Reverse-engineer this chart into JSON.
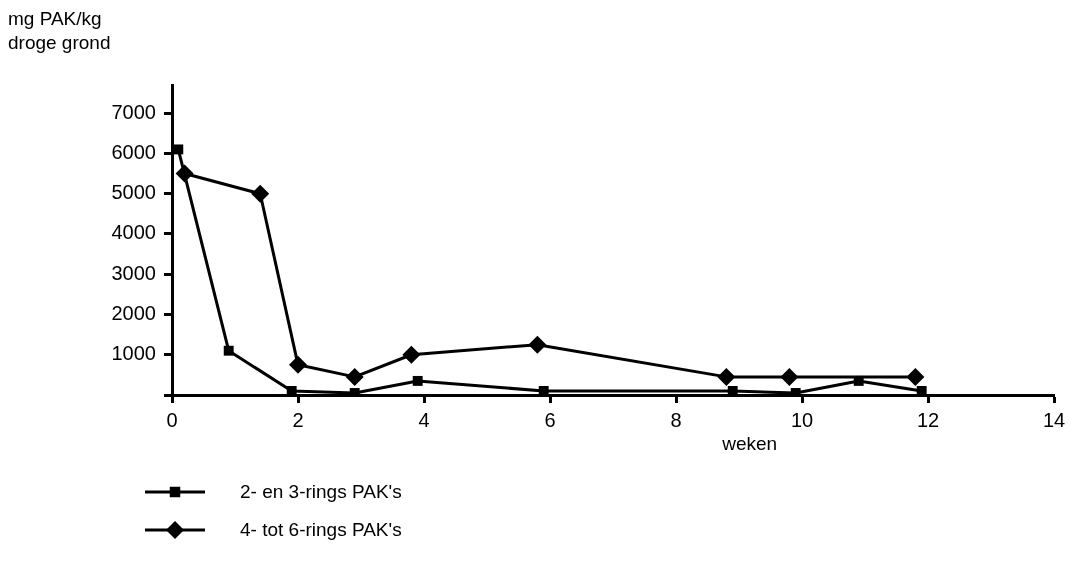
{
  "chart_data": {
    "type": "line",
    "ylabel": "mg PAK/kg\ndroge grond",
    "xlabel": "weken",
    "xlim": [
      0,
      14
    ],
    "xticks": [
      0,
      2,
      4,
      6,
      8,
      10,
      12,
      14
    ],
    "ylim": [
      0,
      7700
    ],
    "yticks": [
      {
        "value": 0,
        "label": null
      },
      1000,
      2000,
      3000,
      4000,
      5000,
      6000,
      7000
    ],
    "grid": false,
    "legend": "bottom left",
    "series": [
      {
        "name": "2- en 3-rings PAK's",
        "color": "#000000",
        "marker": "square",
        "x": [
          0.1,
          0.9,
          1.9,
          2.9,
          3.9,
          5.9,
          8.9,
          9.9,
          10.9,
          11.9
        ],
        "values": [
          6100,
          1100,
          100,
          50,
          350,
          100,
          100,
          50,
          350,
          100
        ]
      },
      {
        "name": "4- tot 6-rings PAK's",
        "color": "#000000",
        "marker": "diamond",
        "x": [
          0.2,
          1.4,
          2.0,
          2.9,
          3.8,
          5.8,
          8.8,
          9.8,
          11.8
        ],
        "values": [
          5500,
          5000,
          750,
          450,
          1000,
          1250,
          450,
          450,
          450
        ]
      }
    ]
  }
}
